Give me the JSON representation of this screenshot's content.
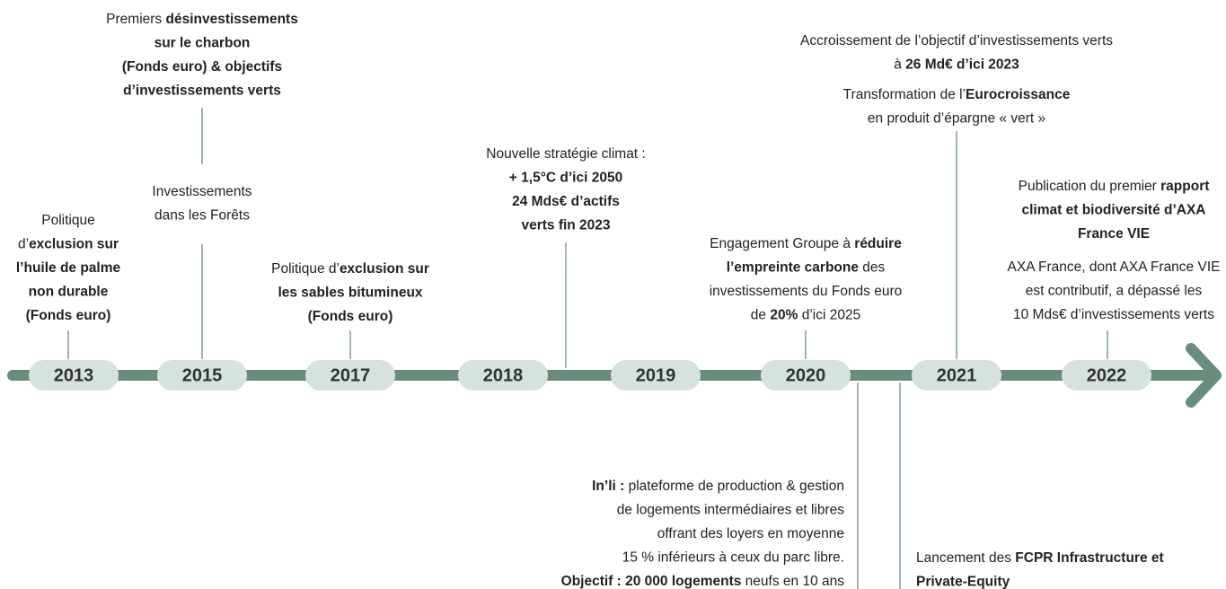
{
  "years": [
    "2013",
    "2015",
    "2017",
    "2018",
    "2019",
    "2020",
    "2021",
    "2022"
  ],
  "events": [
    {
      "paragraphs": [
        [
          [
            "Politique"
          ],
          [
            "d’",
            {
              "t": "exclusion sur",
              "b": true
            }
          ],
          [
            {
              "t": "l’huile de palme",
              "b": true
            }
          ],
          [
            {
              "t": "non durable",
              "b": true
            }
          ],
          [
            {
              "t": "(Fonds euro)",
              "b": true
            }
          ]
        ]
      ]
    },
    {
      "paragraphs": [
        [
          [
            "Premiers ",
            {
              "t": "désinvestissements",
              "b": true
            }
          ],
          [
            {
              "t": "sur le charbon",
              "b": true
            }
          ],
          [
            {
              "t": "(Fonds euro) & objectifs",
              "b": true
            }
          ],
          [
            {
              "t": "d’investissements verts",
              "b": true
            }
          ]
        ],
        [
          [
            "Investissements"
          ],
          [
            "dans les Forêts"
          ]
        ]
      ]
    },
    {
      "paragraphs": [
        [
          [
            "Politique d’",
            {
              "t": "exclusion sur",
              "b": true
            }
          ],
          [
            {
              "t": "les sables bitumineux",
              "b": true
            }
          ],
          [
            {
              "t": "(Fonds euro)",
              "b": true
            }
          ]
        ]
      ]
    },
    {
      "paragraphs": [
        [
          [
            "Nouvelle stratégie climat :"
          ],
          [
            {
              "t": "+ 1,5°C d’ici 2050",
              "b": true
            }
          ],
          [
            {
              "t": "24 Mds€ d’actifs",
              "b": true
            }
          ],
          [
            {
              "t": "verts fin 2023",
              "b": true
            }
          ]
        ]
      ]
    },
    {
      "paragraphs": [
        [
          [
            "Engagement Groupe à ",
            {
              "t": "réduire",
              "b": true
            }
          ],
          [
            {
              "t": "l’empreinte carbone",
              "b": true
            },
            " des"
          ],
          [
            "investissements du Fonds euro"
          ],
          [
            "de ",
            {
              "t": "20%",
              "b": true
            },
            " d’ici 2025"
          ]
        ]
      ]
    },
    {
      "paragraphs": [
        [
          [
            "Accroissement de l’objectif d’investissements verts"
          ],
          [
            "à ",
            {
              "t": "26 Md€ d’ici 2023",
              "b": true
            }
          ]
        ],
        [
          [
            "Transformation de l’",
            {
              "t": "Eurocroissance",
              "b": true
            }
          ],
          [
            "en produit d’épargne « vert »"
          ]
        ]
      ]
    },
    {
      "paragraphs": [
        [
          [
            "Publication du premier ",
            {
              "t": "rapport",
              "b": true
            }
          ],
          [
            {
              "t": "climat et biodiversité d’AXA",
              "b": true
            }
          ],
          [
            {
              "t": "France VIE",
              "b": true
            }
          ]
        ],
        [
          [
            "AXA France, dont AXA France VIE"
          ],
          [
            "est contributif, a dépassé les"
          ],
          [
            "10 Mds€ d’investissements verts"
          ]
        ]
      ]
    },
    {
      "paragraphs": [
        [
          [
            {
              "t": "In’li :",
              "b": true
            },
            " plateforme de production & gestion"
          ],
          [
            "de logements intermédiaires et libres"
          ],
          [
            "offrant des loyers en moyenne"
          ],
          [
            "15 % inférieurs à ceux du parc libre."
          ],
          [
            {
              "t": "Objectif : 20 000 logements",
              "b": true
            },
            " neufs en 10 ans"
          ]
        ]
      ]
    },
    {
      "paragraphs": [
        [
          [
            "Lancement des ",
            {
              "t": "FCPR Infrastructure et",
              "b": true
            }
          ],
          [
            {
              "t": "Private-Equity",
              "b": true
            }
          ]
        ]
      ]
    }
  ]
}
